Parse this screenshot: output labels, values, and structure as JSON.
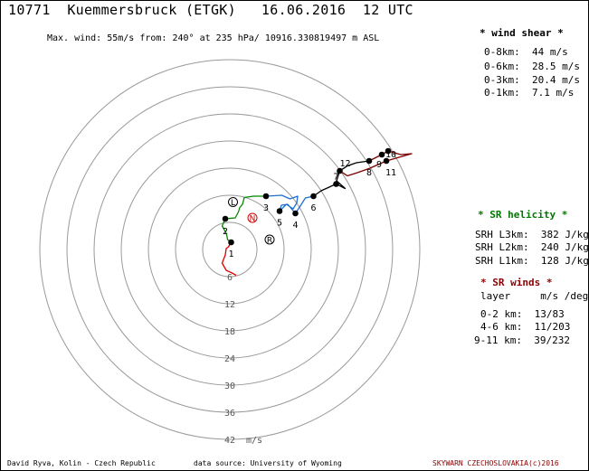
{
  "header": {
    "title": "10771  Kuemmersbruck (ETGK)   16.06.2016  12 UTC",
    "subtitle": "Max. wind: 55m/s from: 240° at 235 hPa/ 10916.330819497 m ASL"
  },
  "wind_shear": {
    "heading": "* wind shear *",
    "rows": [
      "0-8km:  44 m/s",
      "0-6km:  28.5 m/s",
      "0-3km:  20.4 m/s",
      "0-1km:  7.1 m/s"
    ]
  },
  "sr_helicity": {
    "heading": "* SR helicity *",
    "rows": [
      "SRH L3km:  382 J/kg",
      "SRH L2km:  240 J/kg",
      "SRH L1km:  128 J/kg"
    ]
  },
  "sr_winds": {
    "heading": "* SR winds *",
    "col_header": "layer     m/s /deg",
    "rows": [
      "0-2 km:  13/83",
      "4-6 km:  11/203",
      "9-11 km:  39/232"
    ]
  },
  "footer": {
    "left": "David Ryva, Kolin - Czech Republic",
    "middle": "data source: University of Wyoming",
    "right": "SKYWARN CZECHOSLOVAKIA(c)2016"
  },
  "colors": {
    "ring": "#9a9a9a",
    "segment_0_1km": "#dd0000",
    "segment_1_3km": "#008800",
    "segment_3_6km": "#1f6fd0",
    "segment_6_9km": "#000000",
    "segment_9_12km": "#7a0000",
    "heading_green": "#007700",
    "heading_red": "#8b0000",
    "storm_motion_N": "#cc0000"
  },
  "chart_data": {
    "type": "hodograph",
    "rings_m_s": [
      6,
      12,
      18,
      24,
      30,
      36,
      42
    ],
    "ring_labels": [
      "6",
      "12",
      "18",
      "24",
      "30",
      "36",
      "42"
    ],
    "speed_unit": "m/s",
    "grid": true,
    "km_markers": [
      {
        "label": "1",
        "u": 0.3,
        "v": 1.6
      },
      {
        "label": "2",
        "u": -1.0,
        "v": 6.8
      },
      {
        "label": "3",
        "u": 8.0,
        "v": 11.8
      },
      {
        "label": "4",
        "u": 14.5,
        "v": 8.0
      },
      {
        "label": "5",
        "u": 11.0,
        "v": 8.5
      },
      {
        "label": "6",
        "u": 18.5,
        "v": 11.8
      },
      {
        "label": "7",
        "u": 23.5,
        "v": 14.5
      },
      {
        "label": "8",
        "u": 30.8,
        "v": 19.6
      },
      {
        "label": "9",
        "u": 33.6,
        "v": 21.0
      },
      {
        "label": "10",
        "u": 35.0,
        "v": 21.8
      },
      {
        "label": "11",
        "u": 34.6,
        "v": 19.6
      },
      {
        "label": "12",
        "u": 24.3,
        "v": 17.4
      }
    ],
    "segments": [
      {
        "layer": "0-1km",
        "color_key": "segment_0_1km",
        "points": [
          [
            1.4,
            -5.7
          ],
          [
            0.5,
            -5.2
          ],
          [
            -0.8,
            -4.6
          ],
          [
            -1.7,
            -3.0
          ],
          [
            -1.0,
            -1.2
          ],
          [
            -0.8,
            0.2
          ],
          [
            -0.3,
            0.6
          ],
          [
            0.3,
            1.6
          ]
        ]
      },
      {
        "layer": "1-3km",
        "color_key": "segment_1_3km",
        "points": [
          [
            0.3,
            1.6
          ],
          [
            -0.5,
            2.2
          ],
          [
            -0.7,
            3.3
          ],
          [
            -1.0,
            4.0
          ],
          [
            -1.7,
            5.2
          ],
          [
            -1.0,
            6.8
          ],
          [
            1.2,
            7.0
          ],
          [
            1.9,
            8.3
          ],
          [
            2.2,
            9.3
          ],
          [
            2.8,
            10.0
          ],
          [
            3.2,
            11.5
          ],
          [
            5.2,
            11.8
          ],
          [
            8.0,
            11.8
          ]
        ]
      },
      {
        "layer": "3-6km",
        "color_key": "segment_3_6km",
        "points": [
          [
            8.0,
            11.8
          ],
          [
            11.5,
            12.0
          ],
          [
            13.3,
            11.2
          ],
          [
            15.0,
            11.8
          ],
          [
            14.8,
            10.3
          ],
          [
            14.0,
            9.0
          ],
          [
            12.5,
            10.0
          ],
          [
            11.0,
            8.5
          ],
          [
            11.4,
            9.8
          ],
          [
            12.8,
            10.0
          ],
          [
            14.5,
            8.0
          ],
          [
            15.5,
            9.5
          ],
          [
            16.7,
            11.4
          ],
          [
            18.5,
            11.8
          ]
        ]
      },
      {
        "layer": "6-9km",
        "color_key": "segment_6_9km",
        "points": [
          [
            18.5,
            11.8
          ],
          [
            20.2,
            13.0
          ],
          [
            23.5,
            14.5
          ],
          [
            25.5,
            13.5
          ],
          [
            23.6,
            15.2
          ],
          [
            24.3,
            17.4
          ],
          [
            26.0,
            18.5
          ],
          [
            28.0,
            19.2
          ],
          [
            30.8,
            19.6
          ]
        ]
      },
      {
        "layer": "9-12km",
        "color_key": "segment_9_12km",
        "points": [
          [
            30.8,
            19.6
          ],
          [
            33.6,
            21.0
          ],
          [
            35.0,
            21.8
          ],
          [
            37.8,
            21.0
          ],
          [
            40.2,
            21.2
          ],
          [
            34.6,
            19.6
          ],
          [
            31.0,
            18.0
          ],
          [
            28.2,
            17.0
          ],
          [
            26.0,
            16.3
          ],
          [
            24.3,
            17.4
          ]
        ]
      }
    ],
    "storm_motion": [
      {
        "label": "L",
        "u": 0.7,
        "v": 10.5
      },
      {
        "label": "N",
        "u": 5.0,
        "v": 7.0
      },
      {
        "label": "R",
        "u": 8.8,
        "v": 2.2
      }
    ]
  }
}
